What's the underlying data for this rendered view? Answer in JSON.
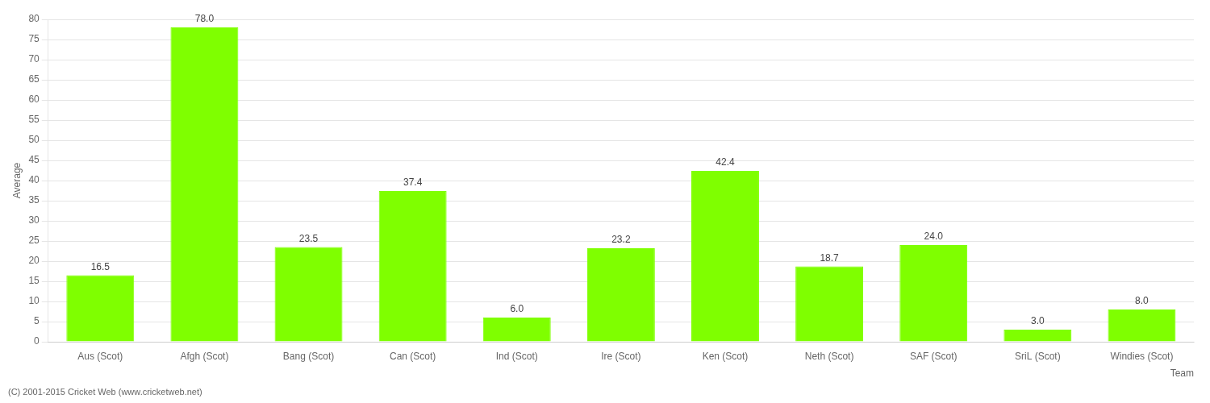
{
  "chart_data": {
    "type": "bar",
    "categories": [
      "Aus (Scot)",
      "Afgh (Scot)",
      "Bang (Scot)",
      "Can (Scot)",
      "Ind (Scot)",
      "Ire (Scot)",
      "Ken (Scot)",
      "Neth (Scot)",
      "SAF (Scot)",
      "SriL (Scot)",
      "Windies (Scot)"
    ],
    "values": [
      16.5,
      78.0,
      23.5,
      37.4,
      6.0,
      23.2,
      42.4,
      18.7,
      24.0,
      3.0,
      8.0
    ],
    "value_labels": [
      "16.5",
      "78.0",
      "23.5",
      "37.4",
      "6.0",
      "23.2",
      "42.4",
      "18.7",
      "24.0",
      "3.0",
      "8.0"
    ],
    "color": "#7FFF00",
    "xlabel": "Team",
    "ylabel": "Average",
    "ylim": [
      0,
      80
    ],
    "yticks": [
      0,
      5,
      10,
      15,
      20,
      25,
      30,
      35,
      40,
      45,
      50,
      55,
      60,
      65,
      70,
      75,
      80
    ],
    "grid": true,
    "data_labels": true,
    "annotations": [
      "(C) 2001-2015 Cricket Web (www.cricketweb.net)"
    ]
  }
}
